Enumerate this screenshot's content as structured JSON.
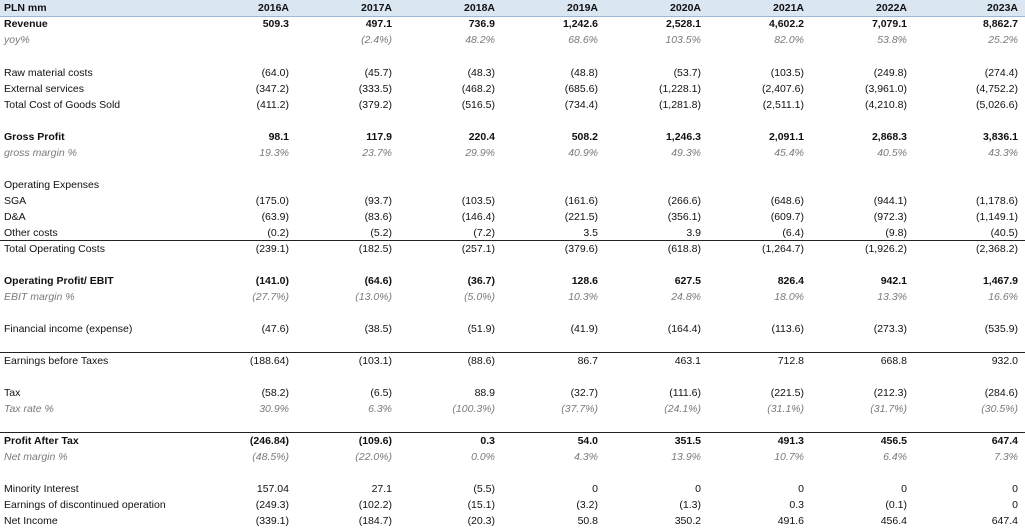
{
  "header": {
    "label": "PLN mm",
    "years": [
      "2016A",
      "2017A",
      "2018A",
      "2019A",
      "2020A",
      "2021A",
      "2022A",
      "2023A"
    ]
  },
  "rows": [
    {
      "label": "Revenue",
      "style": "bold",
      "values": [
        "509.3",
        "497.1",
        "736.9",
        "1,242.6",
        "2,528.1",
        "4,602.2",
        "7,079.1",
        "8,862.7"
      ]
    },
    {
      "label": "yoy%",
      "style": "ital",
      "values": [
        "",
        "(2.4%)",
        "48.2%",
        "68.6%",
        "103.5%",
        "82.0%",
        "53.8%",
        "25.2%"
      ]
    },
    {
      "label": "Raw material costs",
      "style": "normal",
      "values": [
        "(64.0)",
        "(45.7)",
        "(48.3)",
        "(48.8)",
        "(53.7)",
        "(103.5)",
        "(249.8)",
        "(274.4)"
      ]
    },
    {
      "label": "External services",
      "style": "normal",
      "values": [
        "(347.2)",
        "(333.5)",
        "(468.2)",
        "(685.6)",
        "(1,228.1)",
        "(2,407.6)",
        "(3,961.0)",
        "(4,752.2)"
      ]
    },
    {
      "label": "Total Cost of Goods Sold",
      "style": "normal",
      "values": [
        "(411.2)",
        "(379.2)",
        "(516.5)",
        "(734.4)",
        "(1,281.8)",
        "(2,511.1)",
        "(4,210.8)",
        "(5,026.6)"
      ]
    },
    {
      "label": "Gross Profit",
      "style": "bold",
      "values": [
        "98.1",
        "117.9",
        "220.4",
        "508.2",
        "1,246.3",
        "2,091.1",
        "2,868.3",
        "3,836.1"
      ]
    },
    {
      "label": "gross margin %",
      "style": "ital",
      "values": [
        "19.3%",
        "23.7%",
        "29.9%",
        "40.9%",
        "49.3%",
        "45.4%",
        "40.5%",
        "43.3%"
      ]
    },
    {
      "label": "Operating Expenses",
      "style": "normal",
      "values": [
        "",
        "",
        "",
        "",
        "",
        "",
        "",
        ""
      ]
    },
    {
      "label": "SGA",
      "style": "normal",
      "values": [
        "(175.0)",
        "(93.7)",
        "(103.5)",
        "(161.6)",
        "(266.6)",
        "(648.6)",
        "(944.1)",
        "(1,178.6)"
      ]
    },
    {
      "label": "D&A",
      "style": "normal",
      "values": [
        "(63.9)",
        "(83.6)",
        "(146.4)",
        "(221.5)",
        "(356.1)",
        "(609.7)",
        "(972.3)",
        "(1,149.1)"
      ]
    },
    {
      "label": "Other costs",
      "style": "normal",
      "values": [
        "(0.2)",
        "(5.2)",
        "(7.2)",
        "3.5",
        "3.9",
        "(6.4)",
        "(9.8)",
        "(40.5)"
      ]
    },
    {
      "label": "Total Operating Costs",
      "style": "normal",
      "values": [
        "(239.1)",
        "(182.5)",
        "(257.1)",
        "(379.6)",
        "(618.8)",
        "(1,264.7)",
        "(1,926.2)",
        "(2,368.2)"
      ]
    },
    {
      "label": "Operating Profit/ EBIT",
      "style": "bold",
      "values": [
        "(141.0)",
        "(64.6)",
        "(36.7)",
        "128.6",
        "627.5",
        "826.4",
        "942.1",
        "1,467.9"
      ]
    },
    {
      "label": "EBIT margin %",
      "style": "ital",
      "values": [
        "(27.7%)",
        "(13.0%)",
        "(5.0%)",
        "10.3%",
        "24.8%",
        "18.0%",
        "13.3%",
        "16.6%"
      ]
    },
    {
      "label": "Financial income (expense)",
      "style": "normal",
      "values": [
        "(47.6)",
        "(38.5)",
        "(51.9)",
        "(41.9)",
        "(164.4)",
        "(113.6)",
        "(273.3)",
        "(535.9)"
      ]
    },
    {
      "label": "Earnings before Taxes",
      "style": "normal",
      "values": [
        "(188.64)",
        "(103.1)",
        "(88.6)",
        "86.7",
        "463.1",
        "712.8",
        "668.8",
        "932.0"
      ]
    },
    {
      "label": "Tax",
      "style": "normal",
      "values": [
        "(58.2)",
        "(6.5)",
        "88.9",
        "(32.7)",
        "(111.6)",
        "(221.5)",
        "(212.3)",
        "(284.6)"
      ]
    },
    {
      "label": "Tax rate %",
      "style": "ital",
      "values": [
        "30.9%",
        "6.3%",
        "(100.3%)",
        "(37.7%)",
        "(24.1%)",
        "(31.1%)",
        "(31.7%)",
        "(30.5%)"
      ]
    },
    {
      "label": "Profit After Tax",
      "style": "bold",
      "values": [
        "(246.84)",
        "(109.6)",
        "0.3",
        "54.0",
        "351.5",
        "491.3",
        "456.5",
        "647.4"
      ]
    },
    {
      "label": "Net margin %",
      "style": "ital",
      "values": [
        "(48.5%)",
        "(22.0%)",
        "0.0%",
        "4.3%",
        "13.9%",
        "10.7%",
        "6.4%",
        "7.3%"
      ]
    },
    {
      "label": "Minority Interest",
      "style": "normal",
      "values": [
        "157.04",
        "27.1",
        "(5.5)",
        "0",
        "0",
        "0",
        "0",
        "0"
      ]
    },
    {
      "label": "Earnings of discontinued operation",
      "style": "normal",
      "values": [
        "(249.3)",
        "(102.2)",
        "(15.1)",
        "(3.2)",
        "(1.3)",
        "0.3",
        "(0.1)",
        "0"
      ]
    },
    {
      "label": "Net Income",
      "style": "normal",
      "values": [
        "(339.1)",
        "(184.7)",
        "(20.3)",
        "50.8",
        "350.2",
        "491.6",
        "456.4",
        "647.4"
      ]
    }
  ]
}
